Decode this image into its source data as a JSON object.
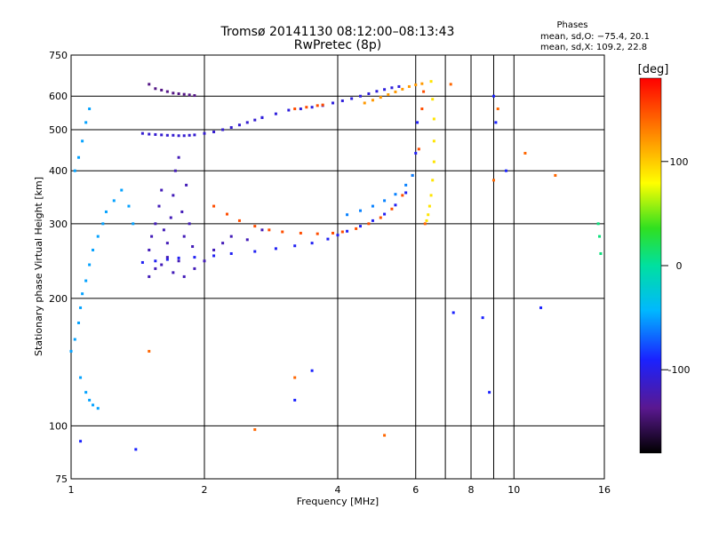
{
  "chart_data": {
    "type": "scatter",
    "title": "Tromsø 20141130 08:12:00–08:13:43",
    "subtitle": "RwPretec (8p)",
    "xlabel": "Frequency [MHz]",
    "ylabel": "Stationary phase Virtual Height [km]",
    "x_scale": "log",
    "y_scale": "log",
    "xlim": [
      1,
      16
    ],
    "ylim": [
      75,
      750
    ],
    "x_ticks": [
      1,
      2,
      4,
      6,
      8,
      10,
      16
    ],
    "y_ticks": [
      75,
      100,
      200,
      300,
      400,
      500,
      600,
      750
    ],
    "x_gridlines": [
      1,
      2,
      4,
      6,
      8,
      10,
      16
    ],
    "y_gridlines": [
      100,
      200,
      300,
      400,
      500,
      600
    ],
    "grid": true,
    "legend": {
      "title": "Phases",
      "lines": [
        "mean, sd,O: −75.4, 20.1",
        "mean, sd,X: 109.2, 22.8"
      ],
      "placement": "top-right"
    },
    "colorbar": {
      "label": "[deg]",
      "range": [
        -180,
        180
      ],
      "ticks": [
        -100,
        0,
        100
      ]
    },
    "series": [
      {
        "name": "",
        "phase_deg": -110,
        "x": [
          1.45,
          1.5,
          1.55,
          1.6,
          1.65,
          1.7,
          1.75,
          1.8,
          1.85,
          1.9,
          2.0,
          2.1,
          2.2,
          2.3,
          2.4,
          2.5,
          2.6,
          2.7
        ],
        "y": [
          490,
          488,
          487,
          486,
          485,
          485,
          484,
          484,
          485,
          486,
          490,
          494,
          500,
          506,
          513,
          520,
          527,
          534
        ]
      },
      {
        "name": "",
        "phase_deg": -105,
        "x": [
          2.7,
          2.9,
          3.1,
          3.3,
          3.5,
          3.7,
          3.9,
          4.1,
          4.3,
          4.5,
          4.7,
          4.9,
          5.1,
          5.3,
          5.5
        ],
        "y": [
          534,
          545,
          556,
          560,
          565,
          570,
          578,
          585,
          592,
          600,
          608,
          616,
          622,
          628,
          632
        ]
      },
      {
        "name": "",
        "phase_deg": -140,
        "x": [
          1.5,
          1.55,
          1.6,
          1.65,
          1.7,
          1.75,
          1.8,
          1.85,
          1.9
        ],
        "y": [
          640,
          625,
          620,
          615,
          610,
          608,
          606,
          604,
          602
        ]
      },
      {
        "name": "",
        "phase_deg": -95,
        "x": [
          1.45,
          1.55,
          1.65,
          1.75,
          1.9,
          2.1,
          2.3,
          2.6,
          2.9,
          3.2,
          3.5,
          3.8,
          4.0,
          4.2,
          4.5,
          4.8,
          5.1,
          5.4,
          5.7,
          5.9,
          6.0,
          6.05
        ],
        "y": [
          243,
          245,
          247,
          249,
          250,
          252,
          255,
          258,
          262,
          266,
          270,
          276,
          282,
          288,
          296,
          305,
          316,
          332,
          355,
          390,
          440,
          520
        ]
      },
      {
        "name": "",
        "phase_deg": 150,
        "x": [
          2.1,
          2.25,
          2.4,
          2.6,
          2.8,
          3.0,
          3.3,
          3.6,
          3.9,
          4.1,
          4.4,
          4.7,
          5.0,
          5.3,
          5.6,
          5.9,
          6.1,
          6.2,
          6.25
        ],
        "y": [
          330,
          316,
          305,
          296,
          290,
          287,
          285,
          284,
          285,
          287,
          292,
          300,
          310,
          325,
          350,
          390,
          450,
          560,
          615
        ]
      },
      {
        "name": "",
        "phase_deg": -60,
        "x": [
          4.2,
          4.5,
          4.8,
          5.1,
          5.4,
          5.7,
          5.9
        ],
        "y": [
          315,
          322,
          330,
          340,
          352,
          370,
          390
        ]
      },
      {
        "name": "",
        "phase_deg": 120,
        "x": [
          4.6,
          4.8,
          5.0,
          5.2,
          5.4,
          5.6,
          5.8,
          6.0,
          6.2
        ],
        "y": [
          578,
          587,
          596,
          605,
          614,
          623,
          632,
          638,
          642
        ]
      },
      {
        "name": "",
        "phase_deg": 150,
        "x": [
          3.2,
          3.4,
          3.6,
          3.7
        ],
        "y": [
          560,
          565,
          570,
          572
        ]
      },
      {
        "name": "",
        "phase_deg": 90,
        "x": [
          6.5,
          6.55,
          6.6,
          6.6,
          6.6,
          6.55,
          6.5,
          6.45,
          6.4,
          6.35
        ],
        "y": [
          650,
          590,
          530,
          470,
          420,
          380,
          350,
          330,
          315,
          305
        ]
      },
      {
        "name": "",
        "phase_deg": -120,
        "x": [
          1.5,
          1.52,
          1.55,
          1.58,
          1.6,
          1.62,
          1.65,
          1.68,
          1.7,
          1.72,
          1.75,
          1.78,
          1.8,
          1.82,
          1.85,
          1.88,
          1.6,
          1.65,
          1.7,
          1.75,
          1.5,
          1.55,
          1.8,
          1.9,
          2.0,
          2.1,
          2.2,
          2.3,
          2.5,
          2.7
        ],
        "y": [
          260,
          280,
          300,
          330,
          360,
          290,
          270,
          310,
          350,
          400,
          430,
          320,
          280,
          370,
          300,
          265,
          240,
          250,
          230,
          245,
          225,
          235,
          225,
          235,
          245,
          260,
          270,
          280,
          275,
          290
        ]
      },
      {
        "name": "",
        "phase_deg": -50,
        "x": [
          1.0,
          1.02,
          1.04,
          1.05,
          1.06,
          1.08,
          1.1,
          1.12,
          1.15,
          1.18,
          1.2,
          1.25,
          1.3,
          1.35,
          1.38,
          1.05,
          1.08,
          1.1,
          1.12,
          1.15,
          1.02,
          1.04,
          1.06,
          1.08,
          1.1
        ],
        "y": [
          150,
          160,
          175,
          190,
          205,
          220,
          240,
          260,
          280,
          300,
          320,
          340,
          360,
          330,
          300,
          130,
          120,
          115,
          112,
          110,
          400,
          430,
          470,
          520,
          560
        ]
      },
      {
        "name": "",
        "phase_deg": 10,
        "x": [
          15.5,
          15.6,
          15.7
        ],
        "y": [
          300,
          280,
          255
        ]
      },
      {
        "name": "",
        "phase_deg": 140,
        "x": [
          10.6,
          12.4,
          9.2,
          9.0,
          7.2,
          6.3,
          5.1,
          3.2,
          2.6,
          1.5
        ],
        "y": [
          440,
          390,
          560,
          380,
          640,
          300,
          95,
          130,
          98,
          150
        ]
      },
      {
        "name": "",
        "phase_deg": -90,
        "x": [
          9.0,
          9.1,
          8.5,
          11.5,
          7.3,
          8.8,
          9.6,
          1.4,
          3.5,
          3.2,
          1.05
        ],
        "y": [
          600,
          520,
          180,
          190,
          185,
          120,
          400,
          88,
          135,
          115,
          92
        ]
      }
    ]
  }
}
